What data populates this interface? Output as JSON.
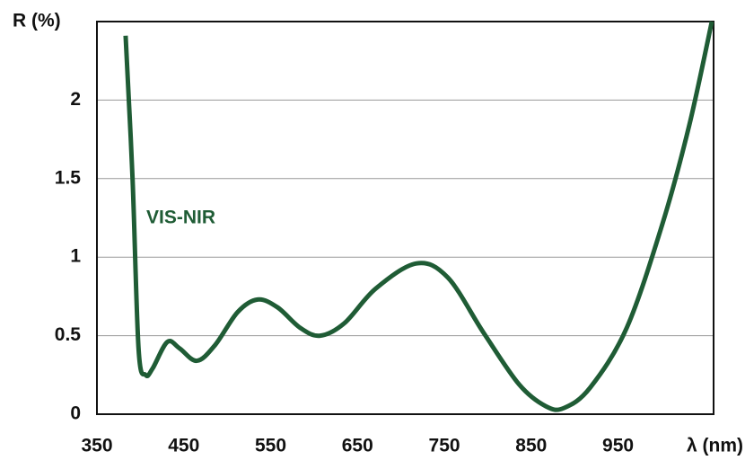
{
  "chart_data": {
    "type": "line",
    "y_label": "R (%)",
    "x_label": "λ (nm)",
    "annotation": "VIS-NIR",
    "series": [
      {
        "name": "VIS-NIR",
        "color": "#1f5c35",
        "x": [
          383,
          391,
          398,
          406,
          414,
          431,
          445,
          465,
          486,
          512,
          535,
          558,
          584,
          607,
          635,
          671,
          718,
          754,
          795,
          836,
          867,
          888,
          918,
          960,
          1001,
          1032,
          1058
        ],
        "values": [
          2.41,
          1.5,
          0.41,
          0.25,
          0.29,
          0.46,
          0.42,
          0.34,
          0.44,
          0.65,
          0.73,
          0.68,
          0.55,
          0.5,
          0.58,
          0.8,
          0.96,
          0.87,
          0.52,
          0.19,
          0.05,
          0.04,
          0.17,
          0.55,
          1.21,
          1.84,
          2.5
        ]
      }
    ],
    "xlim": [
      350,
      1060
    ],
    "xticks": [
      350,
      450,
      550,
      650,
      750,
      850,
      950
    ],
    "ylim": [
      0,
      2.5
    ],
    "yticks": [
      0,
      0.5,
      1,
      1.5,
      2
    ],
    "grid": "y"
  }
}
